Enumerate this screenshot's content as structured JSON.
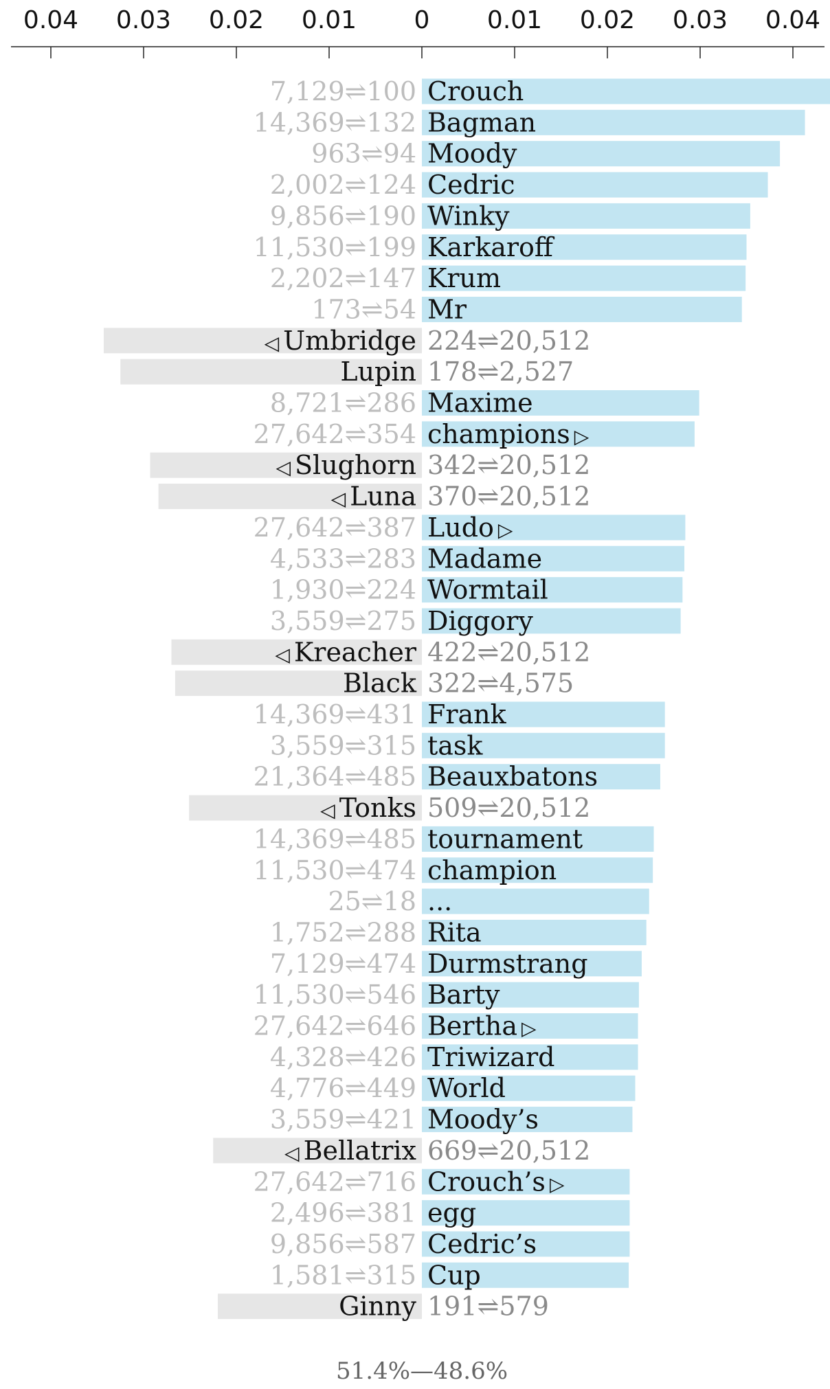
{
  "chart_data": {
    "type": "bar",
    "orientation": "horizontal-diverging",
    "title": "",
    "xlabel": "",
    "ylabel": "",
    "xlim": [
      -0.045,
      0.045
    ],
    "x_ticks": [
      {
        "value": -0.04,
        "label": "0.04"
      },
      {
        "value": -0.03,
        "label": "0.03"
      },
      {
        "value": -0.02,
        "label": "0.02"
      },
      {
        "value": -0.01,
        "label": "0.01"
      },
      {
        "value": 0,
        "label": "0"
      },
      {
        "value": 0.01,
        "label": "0.01"
      },
      {
        "value": 0.02,
        "label": "0.02"
      },
      {
        "value": 0.03,
        "label": "0.03"
      },
      {
        "value": 0.04,
        "label": "0.04"
      }
    ],
    "colors": {
      "positive": "#c2e5f2",
      "negative": "#e6e6e6"
    },
    "rows": [
      {
        "word": "Crouch",
        "value": 0.044,
        "rank": "7,129⇌100",
        "marker": ""
      },
      {
        "word": "Bagman",
        "value": 0.0413,
        "rank": "14,369⇌132",
        "marker": ""
      },
      {
        "word": "Moody",
        "value": 0.0386,
        "rank": "963⇌94",
        "marker": ""
      },
      {
        "word": "Cedric",
        "value": 0.0373,
        "rank": "2,002⇌124",
        "marker": ""
      },
      {
        "word": "Winky",
        "value": 0.0354,
        "rank": "9,856⇌190",
        "marker": ""
      },
      {
        "word": "Karkaroff",
        "value": 0.035,
        "rank": "11,530⇌199",
        "marker": ""
      },
      {
        "word": "Krum",
        "value": 0.0349,
        "rank": "2,202⇌147",
        "marker": ""
      },
      {
        "word": "Mr",
        "value": 0.0345,
        "rank": "173⇌54",
        "marker": ""
      },
      {
        "word": "Umbridge",
        "value": -0.0343,
        "rank": "224⇌20,512",
        "marker": "◁"
      },
      {
        "word": "Lupin",
        "value": -0.0325,
        "rank": "178⇌2,527",
        "marker": ""
      },
      {
        "word": "Maxime",
        "value": 0.0299,
        "rank": "8,721⇌286",
        "marker": ""
      },
      {
        "word": "champions",
        "value": 0.0294,
        "rank": "27,642⇌354",
        "marker": "▷"
      },
      {
        "word": "Slughorn",
        "value": -0.0293,
        "rank": "342⇌20,512",
        "marker": "◁"
      },
      {
        "word": "Luna",
        "value": -0.0284,
        "rank": "370⇌20,512",
        "marker": "◁"
      },
      {
        "word": "Ludo",
        "value": 0.0284,
        "rank": "27,642⇌387",
        "marker": "▷"
      },
      {
        "word": "Madame",
        "value": 0.0283,
        "rank": "4,533⇌283",
        "marker": ""
      },
      {
        "word": "Wormtail",
        "value": 0.0281,
        "rank": "1,930⇌224",
        "marker": ""
      },
      {
        "word": "Diggory",
        "value": 0.0279,
        "rank": "3,559⇌275",
        "marker": ""
      },
      {
        "word": "Kreacher",
        "value": -0.027,
        "rank": "422⇌20,512",
        "marker": "◁"
      },
      {
        "word": "Black",
        "value": -0.0266,
        "rank": "322⇌4,575",
        "marker": ""
      },
      {
        "word": "Frank",
        "value": 0.0262,
        "rank": "14,369⇌431",
        "marker": ""
      },
      {
        "word": "task",
        "value": 0.0262,
        "rank": "3,559⇌315",
        "marker": ""
      },
      {
        "word": "Beauxbatons",
        "value": 0.0257,
        "rank": "21,364⇌485",
        "marker": ""
      },
      {
        "word": "Tonks",
        "value": -0.0251,
        "rank": "509⇌20,512",
        "marker": "◁"
      },
      {
        "word": "tournament",
        "value": 0.025,
        "rank": "14,369⇌485",
        "marker": ""
      },
      {
        "word": "champion",
        "value": 0.0249,
        "rank": "11,530⇌474",
        "marker": ""
      },
      {
        "word": "...",
        "value": 0.0245,
        "rank": "25⇌18",
        "marker": ""
      },
      {
        "word": "Rita",
        "value": 0.0242,
        "rank": "1,752⇌288",
        "marker": ""
      },
      {
        "word": "Durmstrang",
        "value": 0.0237,
        "rank": "7,129⇌474",
        "marker": ""
      },
      {
        "word": "Barty",
        "value": 0.0234,
        "rank": "11,530⇌546",
        "marker": ""
      },
      {
        "word": "Bertha",
        "value": 0.0233,
        "rank": "27,642⇌646",
        "marker": "▷"
      },
      {
        "word": "Triwizard",
        "value": 0.0233,
        "rank": "4,328⇌426",
        "marker": ""
      },
      {
        "word": "World",
        "value": 0.023,
        "rank": "4,776⇌449",
        "marker": ""
      },
      {
        "word": "Moody’s",
        "value": 0.0227,
        "rank": "3,559⇌421",
        "marker": ""
      },
      {
        "word": "Bellatrix",
        "value": -0.0225,
        "rank": "669⇌20,512",
        "marker": "◁"
      },
      {
        "word": "Crouch’s",
        "value": 0.0224,
        "rank": "27,642⇌716",
        "marker": "▷"
      },
      {
        "word": "egg",
        "value": 0.0224,
        "rank": "2,496⇌381",
        "marker": ""
      },
      {
        "word": "Cedric’s",
        "value": 0.0224,
        "rank": "9,856⇌587",
        "marker": ""
      },
      {
        "word": "Cup",
        "value": 0.0223,
        "rank": "1,581⇌315",
        "marker": ""
      },
      {
        "word": "Ginny",
        "value": -0.022,
        "rank": "191⇌579",
        "marker": ""
      }
    ],
    "footer": "51.4%—48.6%"
  }
}
